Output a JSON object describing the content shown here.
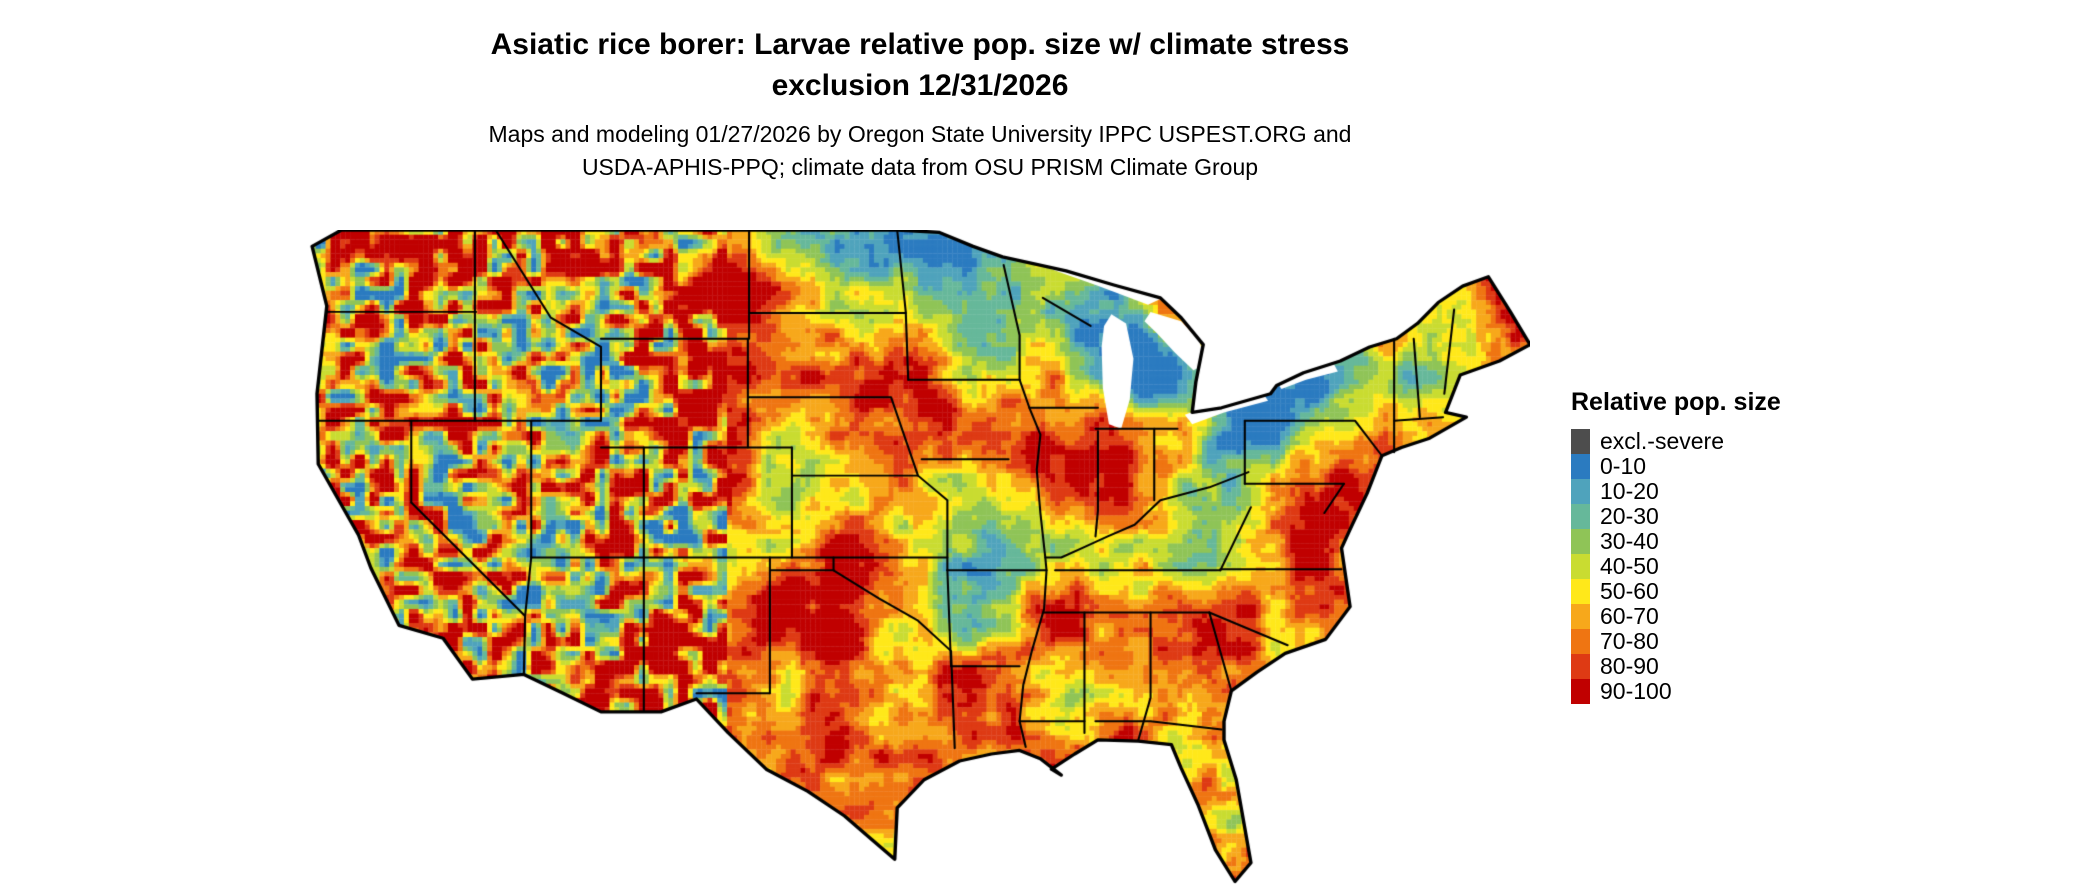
{
  "title": {
    "line1": "Asiatic rice borer: Larvae relative pop. size w/ climate stress",
    "line2": "exclusion 12/31/2026"
  },
  "subtitle": {
    "line1": "Maps and modeling 01/27/2026 by Oregon State University IPPC USPEST.ORG and",
    "line2": "USDA-APHIS-PPQ; climate data from OSU PRISM Climate Group"
  },
  "map": {
    "description": "Continental US raster map of Asiatic rice borer larvae relative population size",
    "background_color": "#ffffff",
    "state_border_color": "#000000",
    "outline_color": "#000000"
  },
  "legend": {
    "title": "Relative pop. size",
    "items": [
      {
        "label": "excl.-severe",
        "color": "#4d4d4d"
      },
      {
        "label": "0-10",
        "color": "#2b7bc0"
      },
      {
        "label": "10-20",
        "color": "#4fa3bc"
      },
      {
        "label": "20-30",
        "color": "#66b89a"
      },
      {
        "label": "30-40",
        "color": "#8fc457"
      },
      {
        "label": "40-50",
        "color": "#c9dc31"
      },
      {
        "label": "50-60",
        "color": "#ffe81a"
      },
      {
        "label": "60-70",
        "color": "#f7a81b"
      },
      {
        "label": "70-80",
        "color": "#ef7512"
      },
      {
        "label": "80-90",
        "color": "#de3a14"
      },
      {
        "label": "90-100",
        "color": "#c00000"
      }
    ]
  }
}
